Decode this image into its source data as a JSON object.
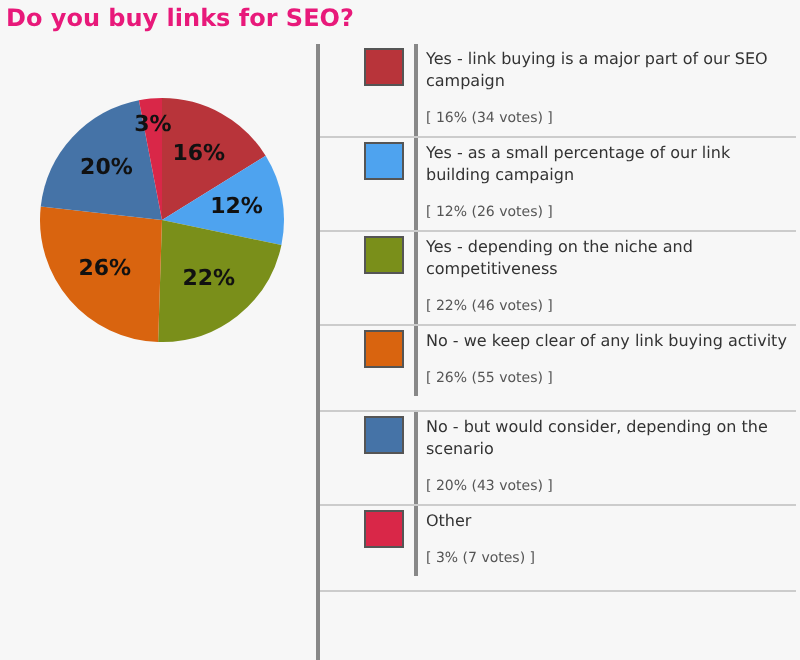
{
  "chart_data": {
    "type": "pie",
    "title": "Do you buy links for SEO?",
    "categories": [
      "Yes - link buying is a major part of our SEO campaign",
      "Yes - as a small percentage of our link building campaign",
      "Yes - depending on the niche and competitiveness",
      "No - we keep clear of any link buying activity",
      "No - but would consider, depending on the scenario",
      "Other"
    ],
    "values": [
      16,
      12,
      22,
      26,
      20,
      3
    ],
    "value_labels": [
      "16%",
      "12%",
      "22%",
      "26%",
      "20%",
      "3%"
    ],
    "colors": [
      "#b8343a",
      "#4ea3ef",
      "#7a8f1a",
      "#d9640f",
      "#4573a7",
      "#d92748"
    ],
    "annotations": [
      "[ 16% (34 votes) ]",
      "[ 12% (26 votes) ]",
      "[ 22% (46 votes) ]",
      "[ 26% (55 votes) ]",
      "[ 20% (43 votes) ]",
      "[ 3% (7 votes) ]"
    ],
    "legend": "right"
  }
}
